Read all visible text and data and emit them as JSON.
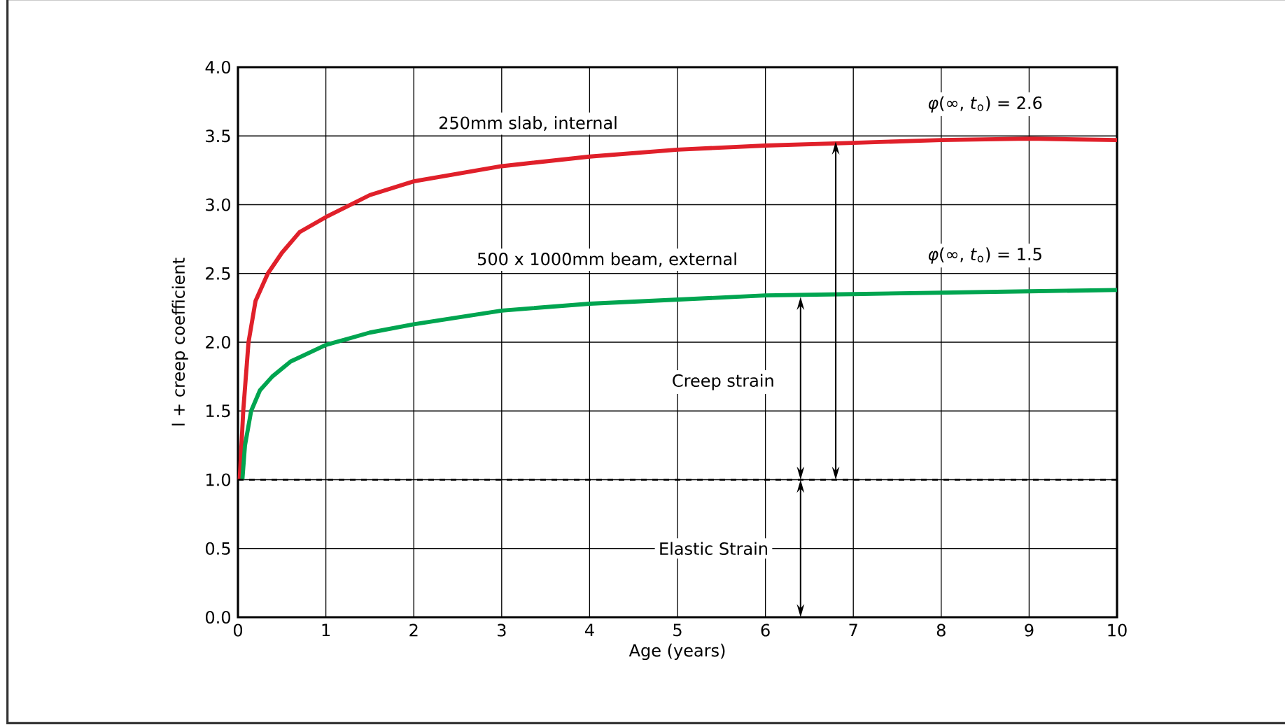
{
  "chart_data": {
    "type": "line",
    "xlabel": "Age (years)",
    "ylabel": "l + creep coefficient",
    "xlim": [
      0,
      10
    ],
    "ylim": [
      0,
      4
    ],
    "xticks": [
      0,
      1,
      2,
      3,
      4,
      5,
      6,
      7,
      8,
      9,
      10
    ],
    "yticks": [
      {
        "value": 0,
        "label": "0.0"
      },
      0.5,
      {
        "value": 1,
        "label": "1.0"
      },
      1.5,
      {
        "value": 2,
        "label": "2.0"
      },
      2.5,
      {
        "value": 3,
        "label": "3.0"
      },
      3.5,
      {
        "value": 4,
        "label": "4.0"
      }
    ],
    "grid": true,
    "marker": "none",
    "line_style": "solid",
    "series": [
      {
        "name": "250mm slab, internal",
        "color": "#e0202a",
        "x": [
          0.02,
          0.06,
          0.12,
          0.2,
          0.34,
          0.5,
          0.7,
          1,
          1.5,
          2,
          3,
          4,
          5,
          6,
          7,
          8,
          9,
          10
        ],
        "values": [
          1.0,
          1.5,
          2.0,
          2.3,
          2.5,
          2.65,
          2.8,
          2.91,
          3.07,
          3.17,
          3.28,
          3.35,
          3.4,
          3.43,
          3.45,
          3.47,
          3.48,
          3.47
        ]
      },
      {
        "name": "500 x 1000mm beam, external",
        "color": "#00a550",
        "x": [
          0.05,
          0.08,
          0.15,
          0.25,
          0.39,
          0.6,
          1,
          1.5,
          2,
          3,
          4,
          5,
          6,
          7,
          8,
          9,
          10
        ],
        "values": [
          1.0,
          1.25,
          1.5,
          1.65,
          1.75,
          1.86,
          1.98,
          2.07,
          2.13,
          2.23,
          2.28,
          2.31,
          2.34,
          2.35,
          2.36,
          2.37,
          2.38
        ]
      }
    ],
    "ref_lines": [
      {
        "axis": "y",
        "value": 1,
        "line_style": "dashed",
        "color": "#000000"
      }
    ],
    "annotations": [
      "*φ*(∞, *t*$_{o}$) = 2.6",
      "*φ*(∞, *t*$_{o}$) = 1.5",
      "Creep strain",
      "Elastic Strain"
    ]
  }
}
